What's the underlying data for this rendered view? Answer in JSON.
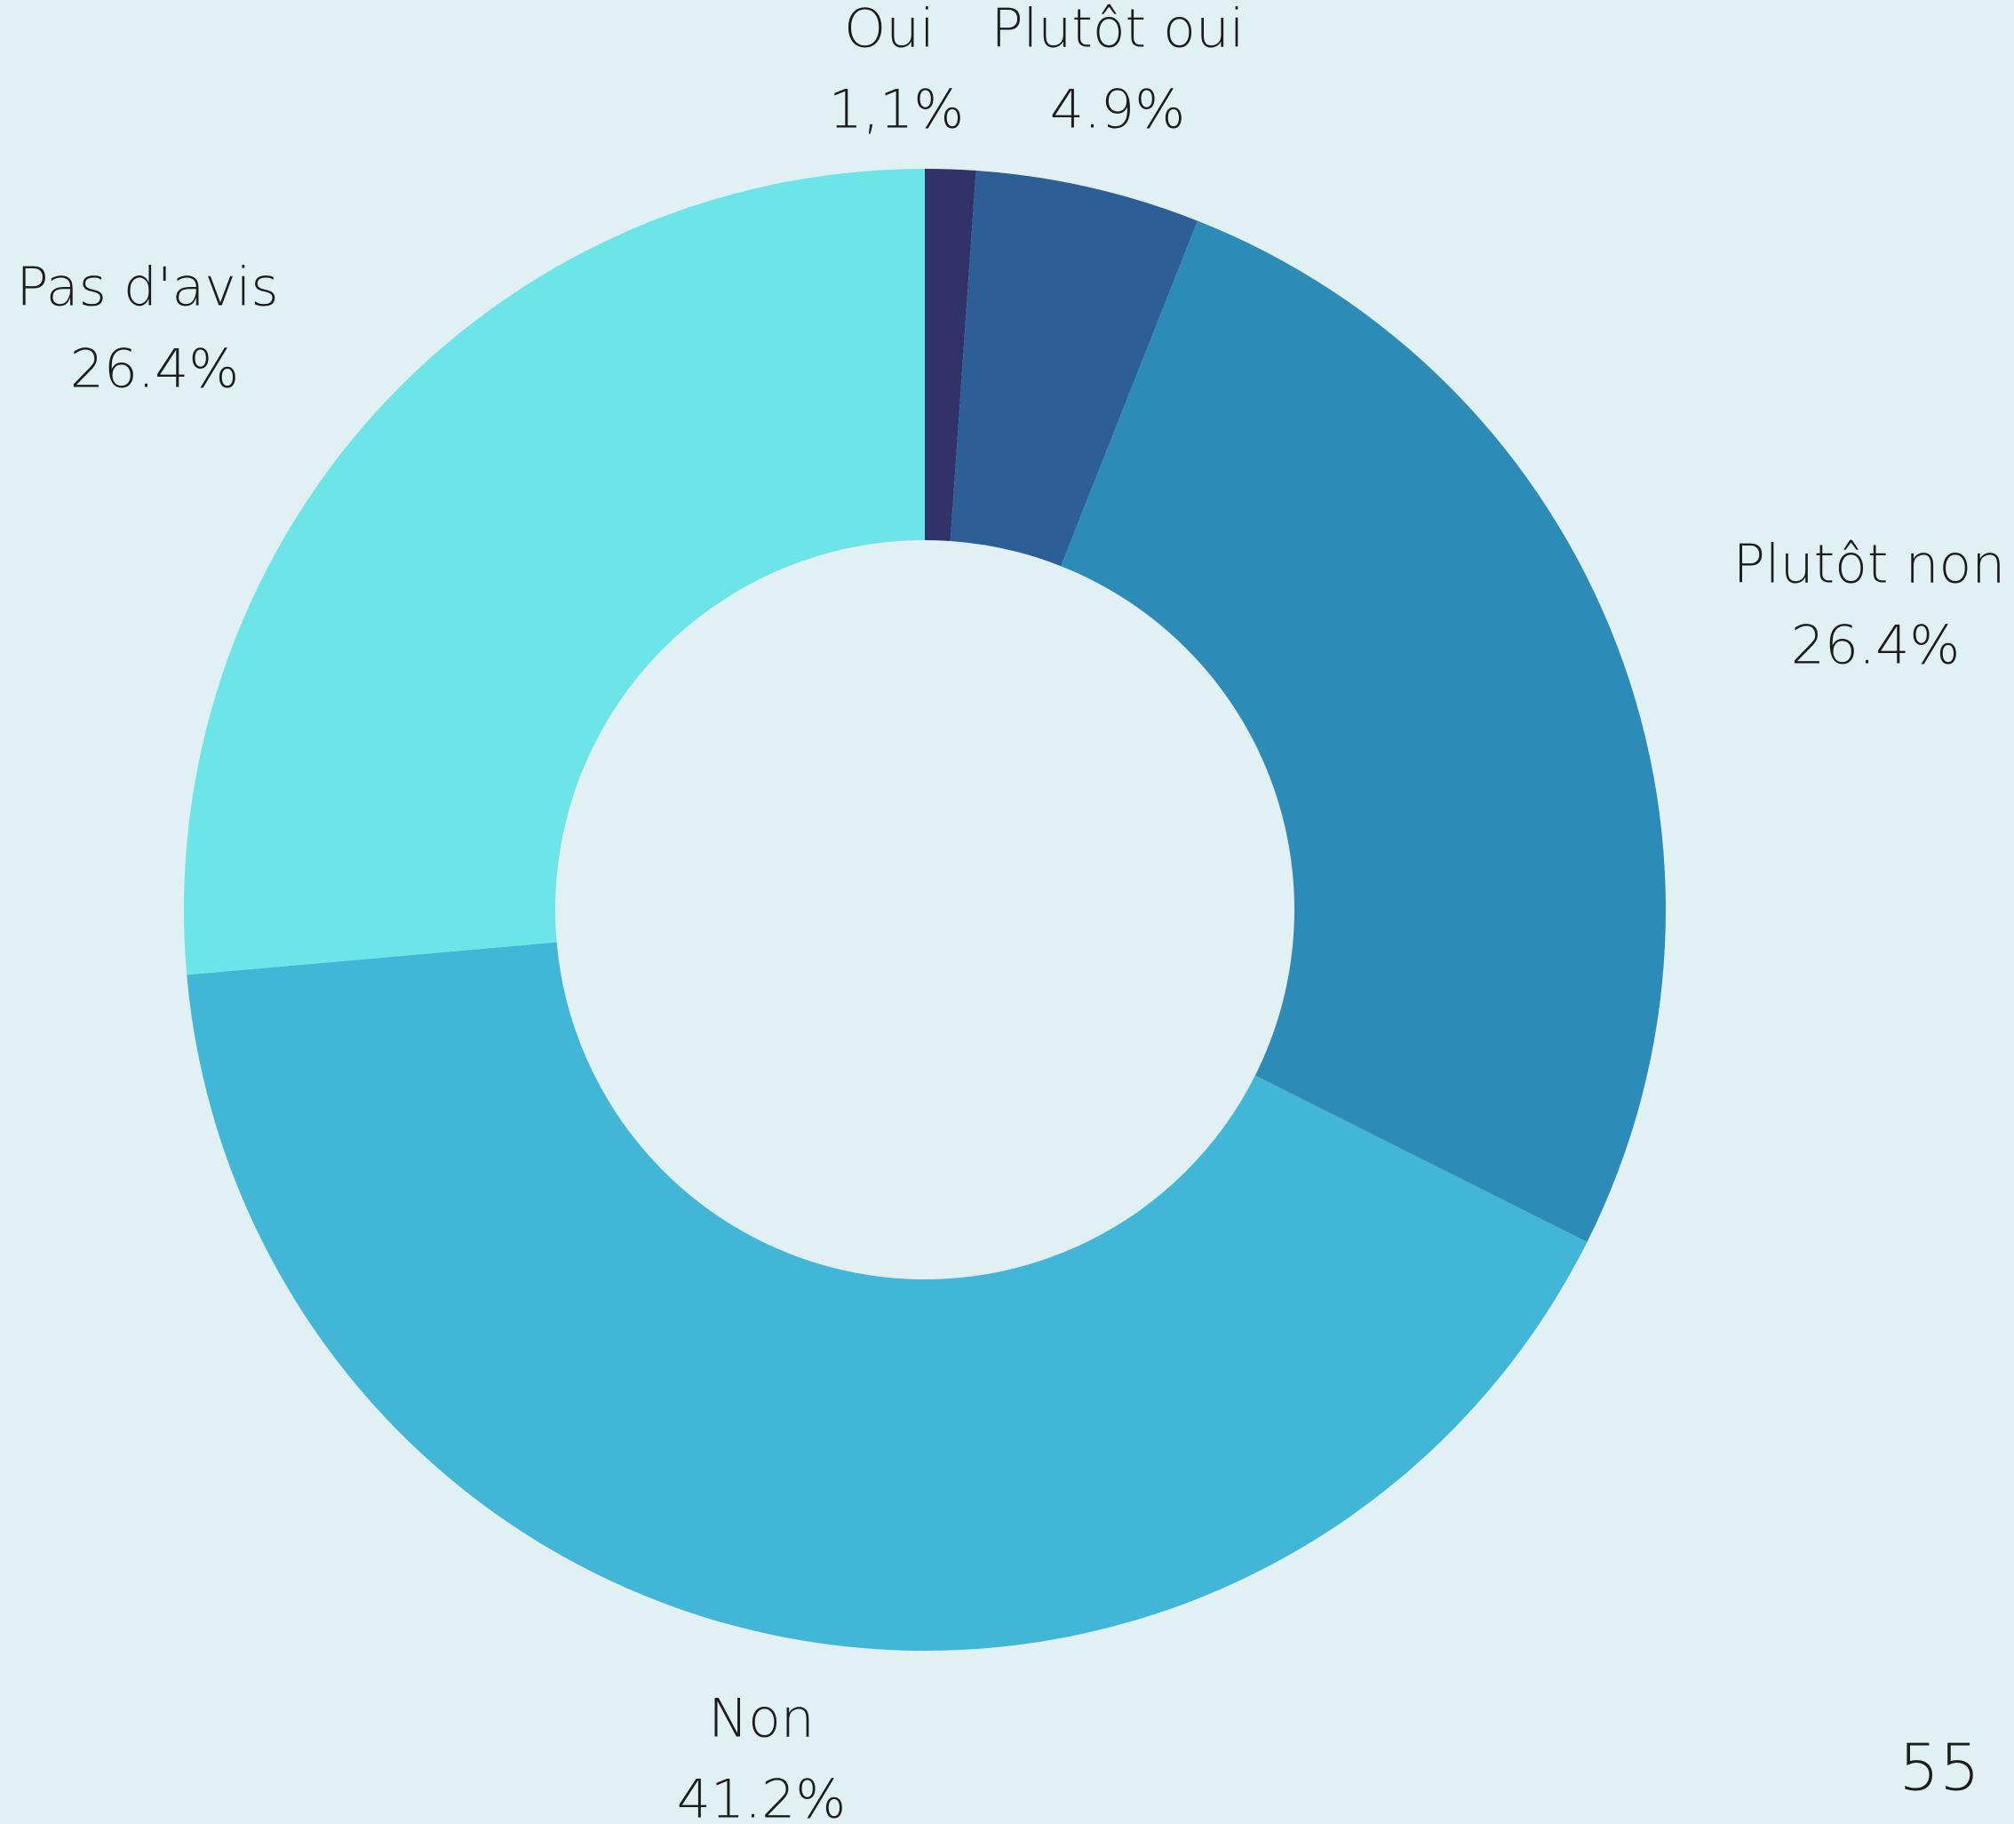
{
  "chart_data": {
    "type": "donut",
    "categories": [
      "Oui",
      "Plutôt oui",
      "Plutôt non",
      "Non",
      "Pas d'avis"
    ],
    "values": [
      1.1,
      4.9,
      26.4,
      41.2,
      26.4
    ],
    "value_labels": [
      "1,1%",
      "4.9%",
      "26.4%",
      "41.2%",
      "26.4%"
    ],
    "colors": [
      "#31326a",
      "#2e5e96",
      "#2d8bb8",
      "#42b6d6",
      "#6ce4e8"
    ],
    "page_number": "55"
  }
}
